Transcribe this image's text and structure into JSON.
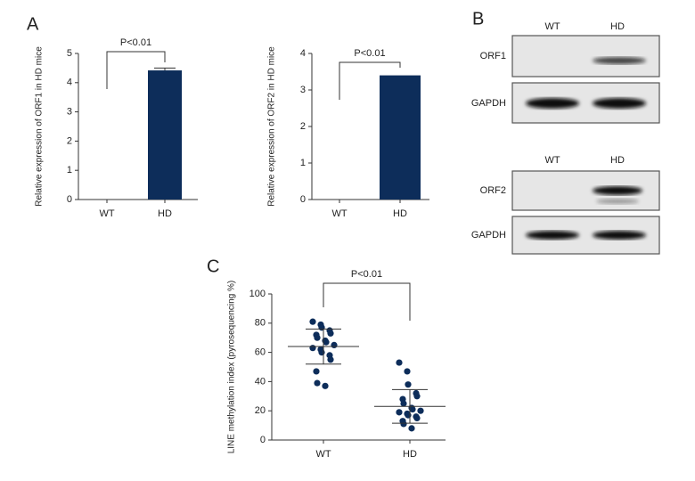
{
  "panel_labels": [
    "A",
    "B",
    "C"
  ],
  "blots": [
    {
      "columns": [
        "WT",
        "HD"
      ],
      "rows": [
        "ORF1",
        "GAPDH"
      ]
    },
    {
      "columns": [
        "WT",
        "HD"
      ],
      "rows": [
        "ORF2",
        "GAPDH"
      ]
    }
  ],
  "chart_data": [
    {
      "type": "bar",
      "y_label": "Relative expression of ORF1 in HD mice",
      "categories": [
        "WT",
        "HD"
      ],
      "values": [
        0,
        4.42
      ],
      "errors": [
        null,
        0.08
      ],
      "color": "#0d2d5a",
      "ylim": [
        0,
        5
      ],
      "yticks": [
        0,
        1,
        2,
        3,
        4,
        5
      ],
      "annotation": "P<0.01"
    },
    {
      "type": "bar",
      "y_label": "Relative expression of ORF2 in HD mice",
      "categories": [
        "WT",
        "HD"
      ],
      "values": [
        0,
        3.4
      ],
      "errors": [
        null,
        null
      ],
      "color": "#0d2d5a",
      "ylim": [
        0,
        4
      ],
      "yticks": [
        0,
        1,
        2,
        3,
        4
      ],
      "annotation": "P<0.01"
    },
    {
      "type": "dot",
      "y_label": "LINE methylation index (pyrosequencing %)",
      "color": "#0d2d5a",
      "groups": [
        {
          "name": "WT",
          "values": [
            81,
            79,
            77,
            75,
            73,
            72,
            70,
            68,
            67,
            65,
            63,
            62,
            60,
            58,
            55,
            47,
            39,
            37
          ],
          "mean": 64,
          "sd": 12
        },
        {
          "name": "HD",
          "values": [
            53,
            47,
            38,
            32,
            30,
            28,
            25,
            22,
            21,
            20,
            19,
            18,
            17,
            16,
            15,
            13,
            11,
            8
          ],
          "mean": 23,
          "sd": 11.5
        }
      ],
      "ylim": [
        0,
        100
      ],
      "yticks": [
        0,
        20,
        40,
        60,
        80,
        100
      ],
      "annotation": "P<0.01"
    }
  ]
}
